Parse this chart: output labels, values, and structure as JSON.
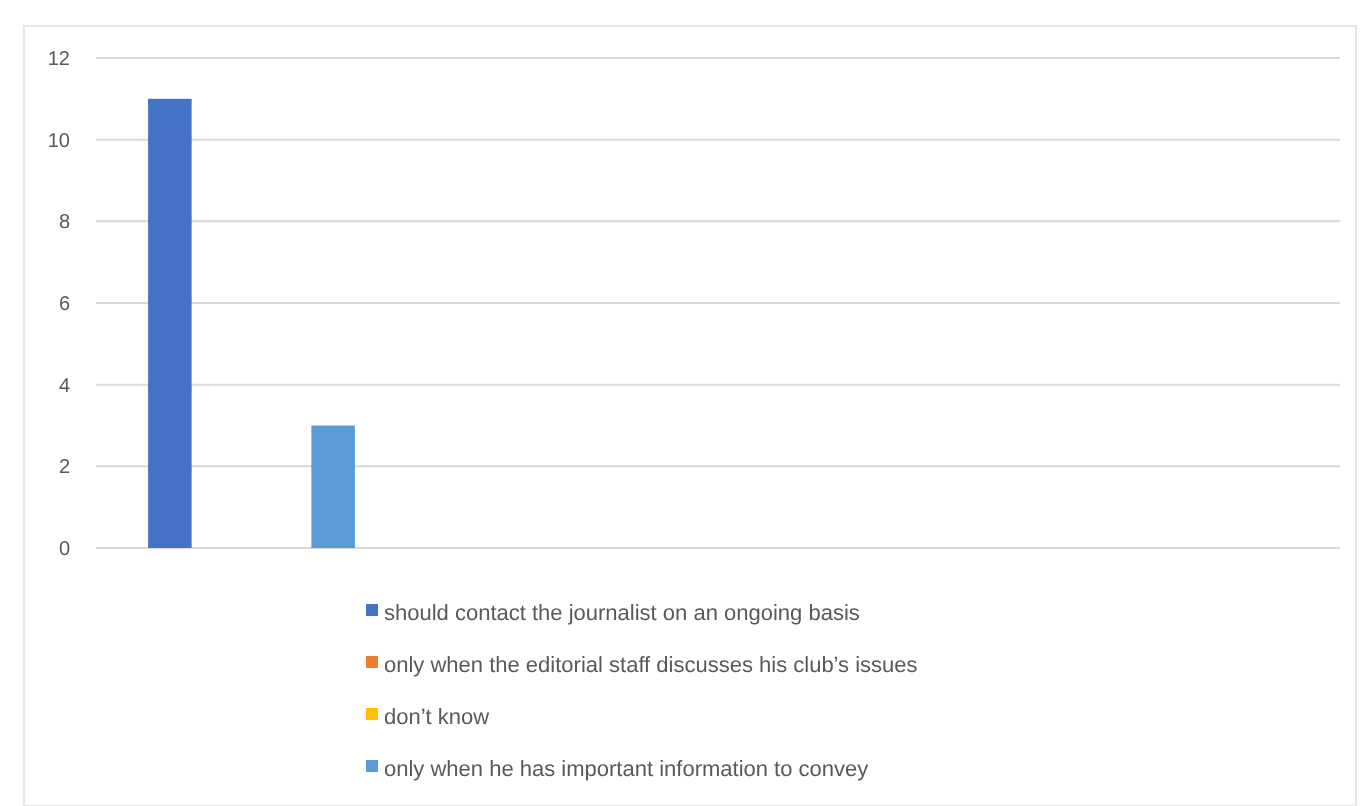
{
  "chart_data": {
    "type": "bar",
    "categories": [
      null
    ],
    "series": [
      {
        "name": "should contact the journalist on an ongoing basis",
        "color": "#4472c4",
        "values": [
          11
        ]
      },
      {
        "name": "only when the editorial staff discusses his club’s issues",
        "color": "#ed7d31",
        "values": [
          0
        ]
      },
      {
        "name": "don’t know",
        "color": "#ffc000",
        "values": [
          0
        ]
      },
      {
        "name": "only when he has important information to convey",
        "color": "#5b9bd5",
        "values": [
          3
        ]
      }
    ],
    "ylim": [
      0,
      12
    ],
    "yticks": [
      0,
      2,
      4,
      6,
      8,
      10,
      12
    ],
    "grid": "y",
    "legend": "bottom"
  }
}
